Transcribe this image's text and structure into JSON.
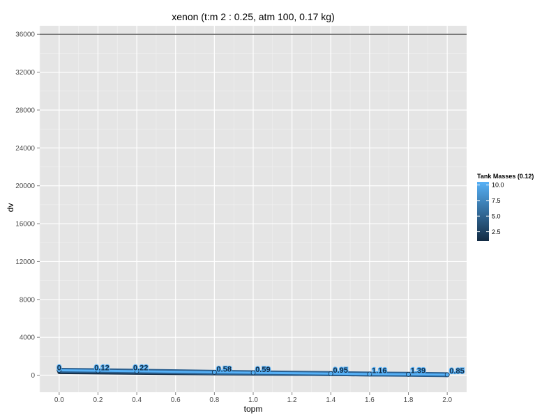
{
  "chart_data": {
    "type": "line",
    "title": "xenon (t:m 2 : 0.25, atm 100, 0.17 kg)",
    "xlabel": "topm",
    "ylabel": "dv",
    "xlim": [
      -0.1,
      2.1
    ],
    "ylim": [
      -1800,
      36900
    ],
    "x_ticks": [
      "0.0",
      "0.2",
      "0.4",
      "0.6",
      "0.8",
      "1.0",
      "1.2",
      "1.4",
      "1.6",
      "1.8",
      "2.0"
    ],
    "y_ticks": [
      "0",
      "4000",
      "8000",
      "12000",
      "16000",
      "20000",
      "24000",
      "28000",
      "32000",
      "36000"
    ],
    "grid": true,
    "hline": 36000,
    "series": [
      {
        "x": [
          0.0,
          0.2,
          0.4,
          0.8,
          1.0,
          1.4,
          1.6,
          1.8,
          2.0
        ],
        "y": [
          520,
          470,
          420,
          310,
          260,
          170,
          120,
          90,
          50
        ]
      },
      {
        "x": [
          0.0,
          0.2,
          0.4,
          0.8,
          1.0,
          1.4,
          1.6,
          1.8,
          2.0
        ],
        "y": [
          310,
          270,
          230,
          170,
          140,
          90,
          60,
          40,
          20
        ]
      }
    ],
    "point_labels": [
      {
        "x": 0.0,
        "y": 520,
        "text": "0"
      },
      {
        "x": 0.22,
        "y": 520,
        "text": "0.12"
      },
      {
        "x": 0.42,
        "y": 500,
        "text": "0.22"
      },
      {
        "x": 0.85,
        "y": 380,
        "text": "0.58"
      },
      {
        "x": 1.05,
        "y": 350,
        "text": "0.59"
      },
      {
        "x": 1.45,
        "y": 270,
        "text": "0.95"
      },
      {
        "x": 1.65,
        "y": 230,
        "text": "1.16"
      },
      {
        "x": 1.85,
        "y": 230,
        "text": "1.39"
      },
      {
        "x": 2.05,
        "y": 200,
        "text": "0.85"
      }
    ],
    "legend": {
      "title": "Tank Masses (0.12)",
      "ticks": [
        "10.0",
        "7.5",
        "5.0",
        "2.5"
      ],
      "tick_values": [
        10.0,
        7.5,
        5.0,
        2.5
      ],
      "range": [
        1,
        10.5
      ],
      "low_color": "#132b43",
      "high_color": "#56b1f7",
      "placement": "right"
    },
    "colors": {
      "panel": "#e5e5e5",
      "grid_major": "#ffffff",
      "grid_minor": "#f2f2f2",
      "line_dark": "#132b43",
      "line_light": "#56b1f7",
      "hline": "#4d4d4d"
    }
  }
}
